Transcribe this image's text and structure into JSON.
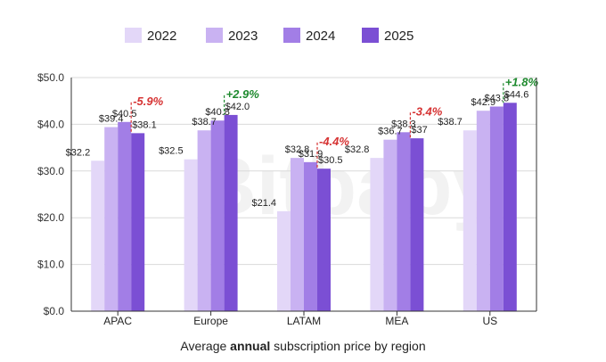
{
  "chart_data": {
    "type": "bar",
    "categories": [
      "APAC",
      "Europe",
      "LATAM",
      "MEA",
      "US"
    ],
    "series": [
      {
        "name": "2022",
        "color": "#E3D7F8",
        "values": [
          32.2,
          32.5,
          21.4,
          32.8,
          38.7
        ],
        "labels": [
          "$32.2",
          "$32.5",
          "$21.4",
          "$32.8",
          "$38.7"
        ]
      },
      {
        "name": "2023",
        "color": "#C9B2F2",
        "values": [
          39.4,
          38.7,
          32.8,
          36.7,
          42.9
        ],
        "labels": [
          "$39.4",
          "$38.7",
          "$32.8",
          "$36.7",
          "$42.9"
        ]
      },
      {
        "name": "2024",
        "color": "#A27EE6",
        "values": [
          40.5,
          40.8,
          31.9,
          38.3,
          43.8
        ],
        "labels": [
          "$40.5",
          "$40.8",
          "$31.9",
          "$38.3",
          "$43.8"
        ]
      },
      {
        "name": "2025",
        "color": "#7B4FD4",
        "values": [
          38.1,
          42.0,
          30.5,
          37.0,
          44.6
        ],
        "labels": [
          "$38.1",
          "$42.0",
          "$30.5",
          "$37",
          "$44.6"
        ]
      }
    ],
    "changes": [
      "-5.9%",
      "+2.9%",
      "-4.4%",
      "-3.4%",
      "+1.8%"
    ],
    "change_colors": {
      "negative": "#D63333",
      "positive": "#1E8A2E"
    },
    "ylim": [
      0,
      50
    ],
    "yticks": [
      0,
      10,
      20,
      30,
      40,
      50
    ],
    "ytick_labels": [
      "$0.0",
      "$10.0",
      "$20.0",
      "$30.0",
      "$40.0",
      "$50.0"
    ],
    "grid": true,
    "legend_position": "top",
    "watermark": "Bitbaby",
    "caption": {
      "pre": "Average ",
      "bold": "annual",
      "post": " subscription price by region"
    }
  }
}
